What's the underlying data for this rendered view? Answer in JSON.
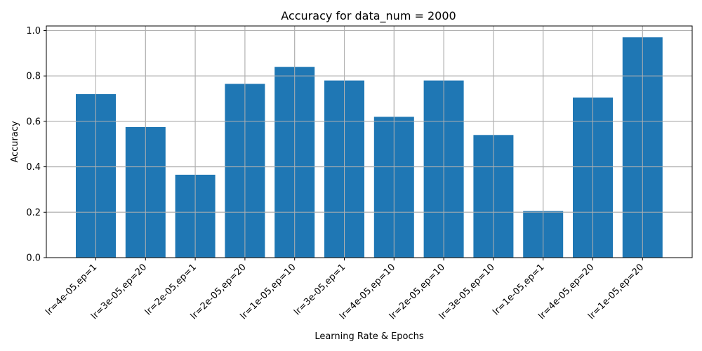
{
  "chart_data": {
    "type": "bar",
    "title": "Accuracy for data_num = 2000",
    "xlabel": "Learning Rate & Epochs",
    "ylabel": "Accuracy",
    "categories": [
      "lr=4e-05,ep=1",
      "lr=3e-05,ep=20",
      "lr=2e-05,ep=1",
      "lr=2e-05,ep=20",
      "lr=1e-05,ep=10",
      "lr=3e-05,ep=1",
      "lr=4e-05,ep=10",
      "lr=2e-05,ep=10",
      "lr=3e-05,ep=10",
      "lr=1e-05,ep=1",
      "lr=4e-05,ep=20",
      "lr=1e-05,ep=20"
    ],
    "values": [
      0.72,
      0.575,
      0.365,
      0.765,
      0.84,
      0.78,
      0.62,
      0.78,
      0.54,
      0.205,
      0.705,
      0.97
    ],
    "ylim": [
      0,
      1.02
    ],
    "yticks": [
      "0.0",
      "0.2",
      "0.4",
      "0.6",
      "0.8",
      "1.0"
    ],
    "grid": true,
    "bar_color": "#1f77b4",
    "grid_color": "#b0b0b0"
  }
}
